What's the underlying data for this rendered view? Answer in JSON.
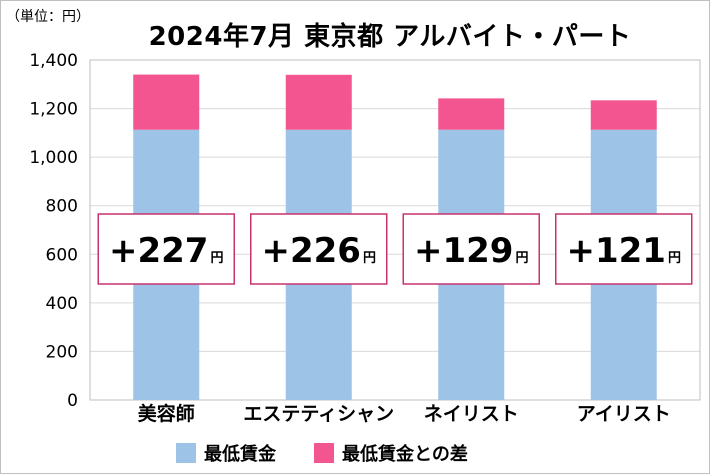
{
  "unit_label": "（単位：円）",
  "chart_data": {
    "type": "bar",
    "stacked": true,
    "title": "2024年7月 東京都 アルバイト・パート",
    "categories": [
      "美容師",
      "エステティシャン",
      "ネイリスト",
      "アイリスト"
    ],
    "series": [
      {
        "name": "最低賃金",
        "color": "#9dc3e6",
        "values": [
          1113,
          1113,
          1113,
          1113
        ]
      },
      {
        "name": "最低賃金との差",
        "color": "#f2558f",
        "values": [
          227,
          226,
          129,
          121
        ]
      }
    ],
    "difference_labels": [
      {
        "sign": "+",
        "value": "227",
        "unit": "円"
      },
      {
        "sign": "+",
        "value": "226",
        "unit": "円"
      },
      {
        "sign": "+",
        "value": "129",
        "unit": "円"
      },
      {
        "sign": "+",
        "value": "121",
        "unit": "円"
      }
    ],
    "ylim": [
      0,
      1400
    ],
    "yticks": [
      0,
      200,
      400,
      600,
      800,
      1000,
      1200,
      1400
    ],
    "ytick_labels": [
      "0",
      "200",
      "400",
      "600",
      "800",
      "1,000",
      "1,200",
      "1,400"
    ],
    "grid": true,
    "legend_position": "bottom",
    "highlight_color": "#c8326e"
  }
}
